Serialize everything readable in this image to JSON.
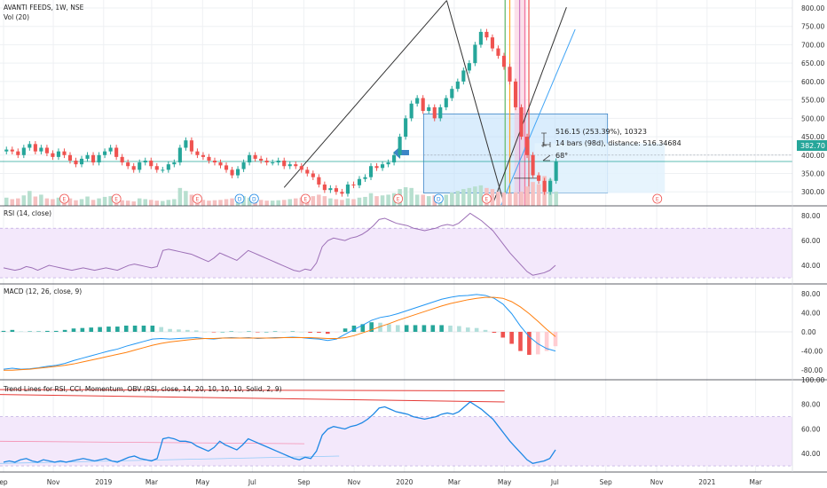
{
  "header": {
    "title": "AVANTI FEEDS, 1W, NSE",
    "volume_label": "Vol (20)"
  },
  "price_tag": "382.70",
  "measure_box": {
    "line1": "516.15 (253.39%), 10323",
    "line2": "14 bars (98d), distance: 516.34684",
    "line3": "68°"
  },
  "colors": {
    "up": "#26a69a",
    "down": "#ef5350",
    "vol_up": "#b7dfcf",
    "vol_down": "#f5c0c0",
    "rsi": "#9c6fb6",
    "rsi_band": "#f3e8fb",
    "macd": "#2196f3",
    "signal": "#ff7f0e",
    "measure_fill": "#bbdefb",
    "arrow": "#3d85c6",
    "trend_red": "#e53935",
    "obv_line": "#1e88e5",
    "grid": "#eef0f3"
  },
  "x_axis": {
    "ticks": [
      {
        "label": "ep",
        "w": 0
      },
      {
        "label": "Nov",
        "w": 8.6
      },
      {
        "label": "2019",
        "w": 17.3
      },
      {
        "label": "Mar",
        "w": 25.6
      },
      {
        "label": "May",
        "w": 34.4
      },
      {
        "label": "Jul",
        "w": 43.0
      },
      {
        "label": "Sep",
        "w": 51.9
      },
      {
        "label": "Nov",
        "w": 60.6
      },
      {
        "label": "2020",
        "w": 69.3
      },
      {
        "label": "Mar",
        "w": 77.9
      },
      {
        "label": "May",
        "w": 86.6
      },
      {
        "label": "Jul",
        "w": 95.3
      },
      {
        "label": "Sep",
        "w": 104.1
      },
      {
        "label": "Nov",
        "w": 112.9
      },
      {
        "label": "2021",
        "w": 121.6
      },
      {
        "label": "Mar",
        "w": 130.0
      }
    ]
  },
  "chart_data": [
    {
      "type": "candlestick",
      "title": "AVANTI FEEDS, 1W, NSE",
      "x_unit": "weeks since first visible bar",
      "ylim": [
        262,
        812
      ],
      "yticks": [
        300,
        350,
        400,
        450,
        500,
        550,
        600,
        650,
        700,
        750,
        800
      ],
      "last_price": 382.7,
      "closes": [
        415,
        410,
        400,
        420,
        430,
        410,
        420,
        405,
        395,
        410,
        400,
        385,
        375,
        390,
        400,
        380,
        400,
        410,
        420,
        395,
        380,
        370,
        360,
        380,
        385,
        370,
        360,
        360,
        375,
        380,
        420,
        440,
        410,
        400,
        395,
        385,
        380,
        372,
        360,
        345,
        362,
        380,
        400,
        390,
        385,
        380,
        380,
        385,
        370,
        375,
        370,
        360,
        350,
        340,
        320,
        305,
        310,
        300,
        295,
        320,
        318,
        335,
        340,
        370,
        365,
        375,
        380,
        400,
        450,
        500,
        540,
        555,
        520,
        530,
        500,
        530,
        555,
        580,
        600,
        630,
        650,
        700,
        735,
        720,
        690,
        670,
        640,
        600,
        530,
        450,
        400,
        345,
        330,
        300,
        330,
        383
      ],
      "volume_scale_max": 100,
      "volumes": [
        22,
        18,
        20,
        28,
        40,
        25,
        30,
        20,
        18,
        22,
        19,
        20,
        15,
        18,
        25,
        16,
        20,
        24,
        26,
        18,
        15,
        14,
        12,
        20,
        18,
        16,
        14,
        13,
        16,
        18,
        48,
        40,
        30,
        18,
        16,
        14,
        15,
        16,
        18,
        20,
        22,
        26,
        22,
        18,
        16,
        14,
        14,
        15,
        16,
        18,
        20,
        22,
        24,
        26,
        30,
        26,
        20,
        18,
        16,
        20,
        18,
        22,
        24,
        34,
        26,
        28,
        30,
        34,
        45,
        50,
        48,
        30,
        30,
        26,
        28,
        26,
        30,
        36,
        40,
        45,
        48,
        52,
        55,
        48,
        45,
        38,
        36,
        34,
        36,
        38,
        52,
        64,
        58,
        80,
        72,
        38
      ],
      "events_earnings": [
        10.5,
        19.5,
        33.5,
        52.2,
        68.2,
        83.5,
        113.0
      ],
      "events_dividend": [
        40.8,
        43.3,
        75.2
      ]
    },
    {
      "type": "line",
      "title": "RSI (14, close)",
      "ylim": [
        25,
        88
      ],
      "yticks": [
        40,
        60,
        80
      ],
      "band": [
        30,
        70
      ],
      "values": [
        38,
        37,
        36,
        37,
        39,
        38,
        36,
        38,
        40,
        39,
        38,
        37,
        36,
        37,
        38,
        37,
        36,
        37,
        38,
        37,
        36,
        38,
        40,
        41,
        40,
        39,
        38,
        39,
        52,
        53,
        52,
        51,
        50,
        49,
        47,
        45,
        43,
        46,
        50,
        48,
        46,
        44,
        48,
        52,
        50,
        48,
        46,
        44,
        42,
        40,
        38,
        36,
        35,
        37,
        36,
        42,
        55,
        60,
        62,
        61,
        60,
        62,
        63,
        65,
        68,
        72,
        77,
        78,
        76,
        74,
        73,
        72,
        70,
        69,
        68,
        69,
        70,
        72,
        73,
        72,
        74,
        78,
        82,
        79,
        76,
        72,
        68,
        62,
        56,
        50,
        45,
        40,
        35,
        32,
        33,
        34,
        36,
        40
      ]
    },
    {
      "type": "line",
      "title": "MACD (12, 26, close, 9)",
      "ylim": [
        -100,
        100
      ],
      "yticks": [
        80,
        40,
        0,
        -40,
        -80
      ],
      "macd": [
        -78,
        -76,
        -78,
        -77,
        -75,
        -72,
        -70,
        -66,
        -60,
        -55,
        -50,
        -45,
        -40,
        -36,
        -30,
        -25,
        -20,
        -15,
        -14,
        -15,
        -14,
        -13,
        -12,
        -14,
        -15,
        -13,
        -12,
        -13,
        -12,
        -14,
        -13,
        -12,
        -12,
        -11,
        -12,
        -14,
        -15,
        -18,
        -15,
        -5,
        5,
        14,
        24,
        30,
        33,
        38,
        44,
        50,
        56,
        62,
        68,
        72,
        75,
        76,
        78,
        76,
        70,
        58,
        38,
        12,
        -10,
        -25,
        -35,
        -40
      ],
      "signal": [
        -80,
        -80,
        -79,
        -78,
        -76,
        -74,
        -72,
        -70,
        -67,
        -63,
        -59,
        -55,
        -51,
        -47,
        -43,
        -38,
        -33,
        -28,
        -24,
        -21,
        -19,
        -17,
        -15,
        -14,
        -14,
        -13,
        -13,
        -13,
        -13,
        -13,
        -13,
        -13,
        -12,
        -12,
        -12,
        -12,
        -13,
        -14,
        -14,
        -12,
        -8,
        -2,
        4,
        11,
        17,
        24,
        30,
        36,
        42,
        48,
        54,
        59,
        63,
        67,
        70,
        72,
        72,
        70,
        63,
        52,
        38,
        22,
        5,
        -10
      ],
      "histogram": [
        2,
        4,
        1,
        1,
        1,
        2,
        2,
        4,
        7,
        8,
        9,
        10,
        11,
        11,
        13,
        13,
        13,
        13,
        10,
        6,
        5,
        4,
        3,
        0,
        -1,
        0,
        1,
        0,
        1,
        -1,
        0,
        1,
        0,
        1,
        0,
        -2,
        -2,
        -4,
        -1,
        7,
        13,
        16,
        20,
        19,
        16,
        14,
        14,
        14,
        14,
        14,
        14,
        13,
        12,
        9,
        8,
        4,
        -2,
        -12,
        -25,
        -40,
        -48,
        -47,
        -40,
        -30
      ]
    },
    {
      "type": "line",
      "title": "Trend Lines for RSI, CCI, Momentum, OBV (RSI, close, 14, 20, 10, 10, 10, Solid, 2, 9)",
      "ylim": [
        25,
        100
      ],
      "yticks": [
        100,
        80,
        60,
        40
      ],
      "band": [
        30,
        70
      ],
      "values": [
        33,
        34,
        33,
        35,
        36,
        34,
        33,
        35,
        34,
        33,
        34,
        33,
        34,
        35,
        36,
        35,
        34,
        35,
        36,
        34,
        33,
        35,
        37,
        38,
        36,
        35,
        34,
        36,
        52,
        53,
        52,
        50,
        50,
        49,
        46,
        44,
        42,
        45,
        50,
        47,
        45,
        43,
        47,
        52,
        50,
        48,
        46,
        44,
        42,
        40,
        38,
        36,
        35,
        37,
        36,
        42,
        55,
        60,
        62,
        61,
        60,
        62,
        63,
        65,
        68,
        72,
        77,
        78,
        76,
        74,
        73,
        72,
        70,
        69,
        68,
        69,
        70,
        72,
        73,
        72,
        74,
        78,
        82,
        79,
        76,
        72,
        68,
        62,
        56,
        50,
        45,
        40,
        35,
        32,
        33,
        34,
        36,
        43
      ]
    }
  ]
}
